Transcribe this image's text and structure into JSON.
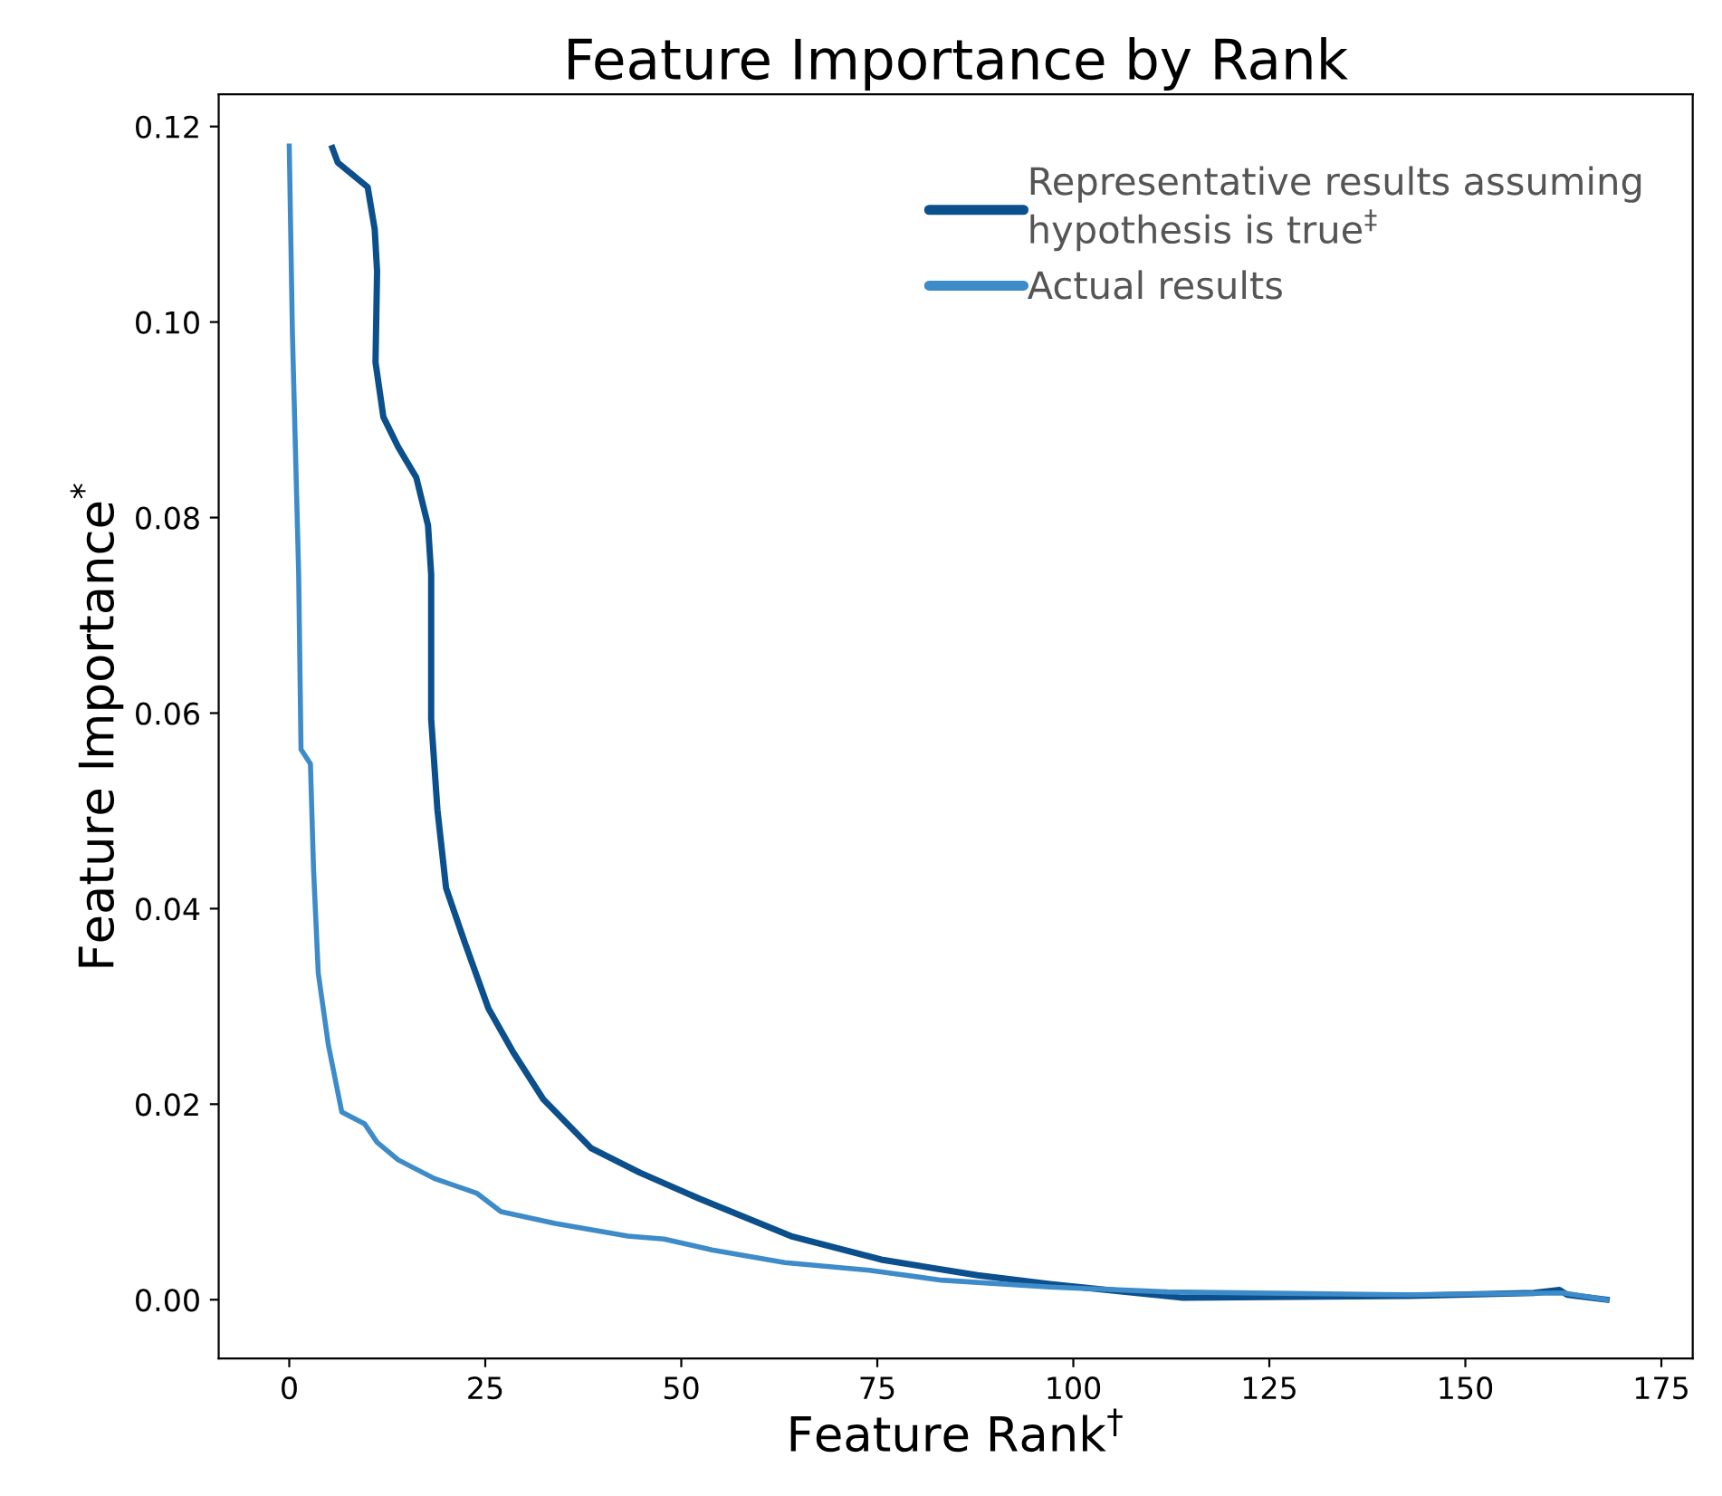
{
  "chart_data": {
    "type": "line",
    "title": "Feature Importance by Rank",
    "xlabel": "Feature Rank$^{†}$",
    "ylabel": "Feature Importance$^{*}$",
    "xlim": [
      -9,
      179
    ],
    "ylim": [
      -0.006,
      0.1233
    ],
    "xticks": [
      0,
      25,
      50,
      75,
      100,
      125,
      150,
      175
    ],
    "yticks": [
      {
        "value": 0,
        "label": "0.00"
      },
      {
        "value": 0.02,
        "label": "0.02"
      },
      {
        "value": 0.04,
        "label": "0.04"
      },
      {
        "value": 0.06,
        "label": "0.06"
      },
      {
        "value": 0.08,
        "label": "0.08"
      },
      {
        "value": 0.1,
        "label": "0.10"
      },
      {
        "value": 0.12,
        "label": "0.12"
      }
    ],
    "grid": false,
    "legend": "top right",
    "marker": "none",
    "line_style": "solid",
    "series": [
      {
        "name": "Representative results assuming\nhypothesis is true$^{‡}$",
        "color": "#0b4f8c",
        "x": [
          5.5,
          6.2,
          10,
          10.9,
          11.2,
          11,
          12,
          13.9,
          16.2,
          17.7,
          18.1,
          18.1,
          18.9,
          20,
          22.4,
          25.4,
          28.5,
          32.4,
          38.5,
          44.7,
          52.4,
          64,
          75.5,
          87.8,
          97,
          114,
          143,
          158.7,
          162,
          163,
          168
        ],
        "values": [
          0.1178,
          0.1163,
          0.1138,
          0.1095,
          0.1052,
          0.0959,
          0.0903,
          0.0872,
          0.0841,
          0.0792,
          0.0742,
          0.0594,
          0.0501,
          0.0421,
          0.0365,
          0.0298,
          0.0254,
          0.0205,
          0.0155,
          0.013,
          0.0103,
          0.0065,
          0.0041,
          0.0025,
          0.0016,
          0.0002,
          0.0004,
          0.0007,
          0.001,
          0.0005,
          0.0
        ]
      },
      {
        "name": "Actual results",
        "color": "#3d8bc9",
        "x": [
          0,
          0.4,
          1.2,
          1.5,
          2.7,
          3.1,
          3.7,
          5,
          6.7,
          9.6,
          11.2,
          13.9,
          18.5,
          23.9,
          27,
          33.9,
          43.2,
          47.8,
          53.9,
          63.2,
          74,
          83.2,
          97,
          112,
          143,
          162.5,
          168
        ],
        "values": [
          0.118,
          0.099,
          0.0742,
          0.0563,
          0.0548,
          0.044,
          0.0334,
          0.026,
          0.0192,
          0.018,
          0.0161,
          0.0143,
          0.0124,
          0.0109,
          0.009,
          0.0078,
          0.0065,
          0.0062,
          0.0051,
          0.0038,
          0.003,
          0.002,
          0.0013,
          0.0008,
          0.0005,
          0.0007,
          0.0
        ]
      }
    ]
  }
}
